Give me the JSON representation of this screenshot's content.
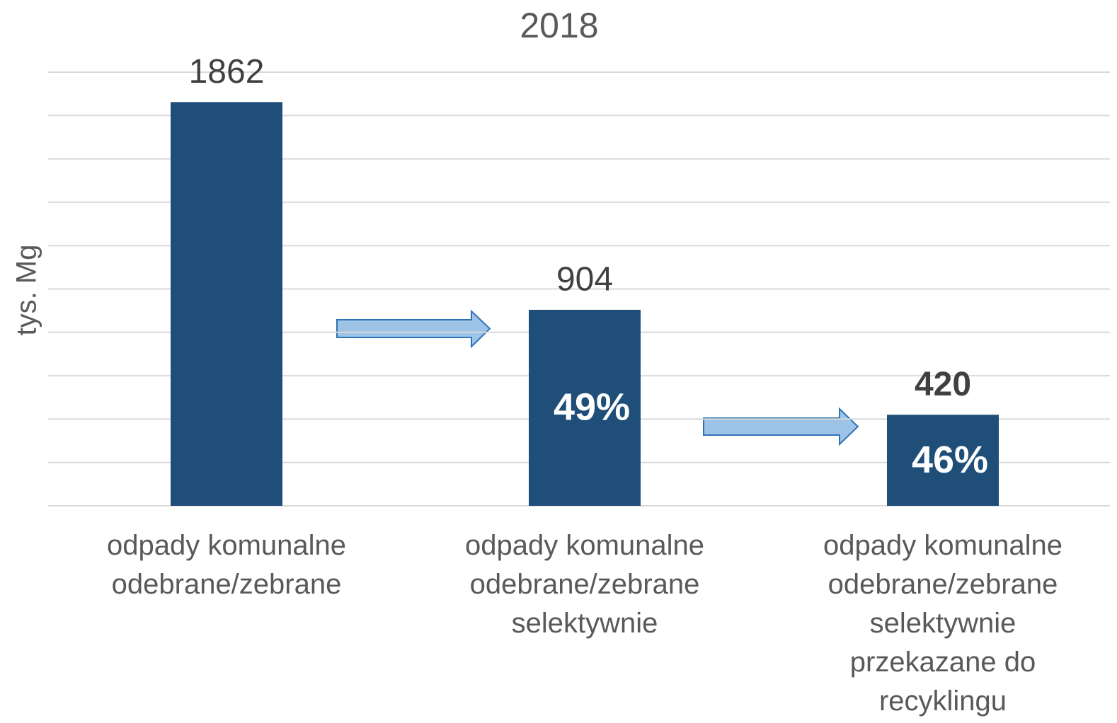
{
  "chart_data": {
    "type": "bar",
    "title": "2018",
    "ylabel": "tys. Mg",
    "categories": [
      "odpady komunalne\nodebrane/zebrane",
      "odpady komunalne\nodebrane/zebrane\nselektywnie",
      "odpady komunalne\nodebrane/zebrane\nselektywnie\nprzekazane do\nrecyklingu"
    ],
    "values": [
      1862,
      904,
      420
    ],
    "bold_values": [
      false,
      false,
      true
    ],
    "inner_labels": [
      null,
      "49%",
      "46%"
    ],
    "color": "#1f4e79",
    "ylim": [
      0,
      2000
    ],
    "yticks": [
      0,
      200,
      400,
      600,
      800,
      1000,
      1200,
      1400,
      1600,
      1800,
      2000
    ],
    "grid": true
  }
}
